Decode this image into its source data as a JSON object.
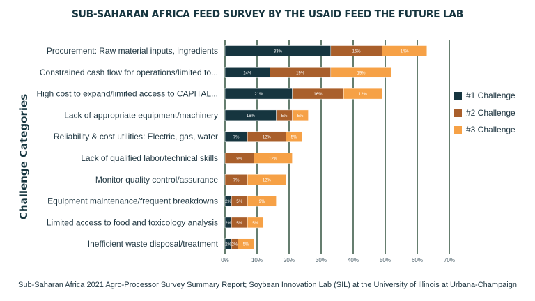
{
  "chart_data": {
    "type": "bar",
    "orientation": "horizontal",
    "stacked": true,
    "title": "SUB-SAHARAN AFRICA FEED SURVEY BY THE USAID FEED THE FUTURE LAB",
    "ylabel": "Challenge Categories",
    "xlabel": "",
    "xlim": [
      0,
      70
    ],
    "xticks": [
      "0%",
      "10%",
      "20%",
      "30%",
      "40%",
      "50%",
      "60%",
      "70%"
    ],
    "grid": "vertical",
    "legend_position": "right",
    "categories": [
      "Procurement: Raw material inputs, ingredients",
      "Constrained cash flow for operations/limited to...",
      "High cost to expand/limited access to CAPITAL...",
      "Lack of appropriate equipment/machinery",
      "Reliability & cost utilities: Electric, gas, water",
      "Lack of qualified labor/technical skills",
      "Monitor quality control/assurance",
      "Equipment maintenance/frequent breakdowns",
      "Limited access to food and toxicology analysis",
      "Inefficient waste disposal/treatment"
    ],
    "series": [
      {
        "name": "#1 Challenge",
        "color": "#16353f",
        "values": [
          33,
          14,
          21,
          16,
          7,
          0,
          0,
          2,
          2,
          2
        ]
      },
      {
        "name": "#2 Challenge",
        "color": "#a95f2b",
        "values": [
          16,
          19,
          16,
          5,
          12,
          9,
          7,
          5,
          5,
          2
        ]
      },
      {
        "name": "#3 Challenge",
        "color": "#f6a146",
        "values": [
          14,
          19,
          12,
          5,
          5,
          12,
          12,
          9,
          5,
          5
        ]
      }
    ],
    "gridline_color": "#3f5e4b"
  },
  "footer": "Sub-Saharan Africa 2021 Agro-Processor Survey Summary Report; Soybean Innovation Lab (SIL) at the University of Illinois at Urbana-Champaign"
}
